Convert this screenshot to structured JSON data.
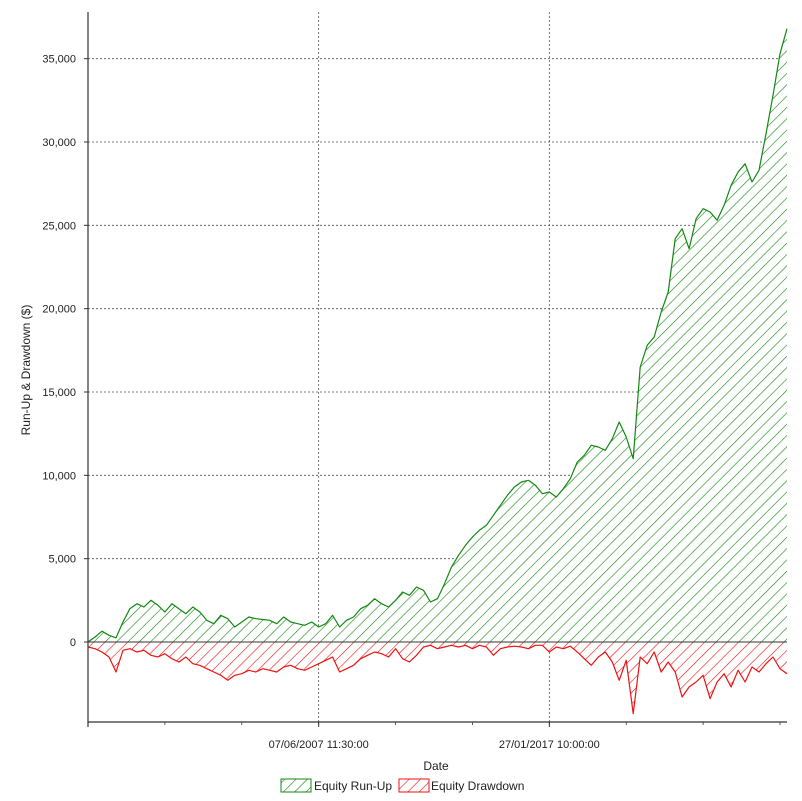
{
  "chart_data": {
    "type": "area",
    "xlabel": "Date",
    "ylabel": "Run-Up & Drawdown ($)",
    "ylim": [
      -4800,
      37800
    ],
    "y_ticks": [
      {
        "value": 0,
        "label": "0"
      },
      {
        "value": 5000,
        "label": "5,000"
      },
      {
        "value": 10000,
        "label": "10,000"
      },
      {
        "value": 15000,
        "label": "15,000"
      },
      {
        "value": 20000,
        "label": "20,000"
      },
      {
        "value": 25000,
        "label": "25,000"
      },
      {
        "value": 30000,
        "label": "30,000"
      },
      {
        "value": 35000,
        "label": "35,000"
      }
    ],
    "xlim": [
      0,
      100
    ],
    "x_ticks": [
      {
        "value": 0,
        "label": ""
      },
      {
        "value": 33,
        "label": "07/06/2007 11:30:00"
      },
      {
        "value": 66,
        "label": "27/01/2017 10:00:00"
      }
    ],
    "grid": true,
    "legend_position": "bottom",
    "series": [
      {
        "name": "Equity Run-Up",
        "color": "#118811",
        "x": [
          0,
          1,
          2,
          3,
          4,
          5,
          6,
          7,
          8,
          9,
          10,
          11,
          12,
          13,
          14,
          15,
          16,
          17,
          18,
          19,
          20,
          21,
          22,
          23,
          24,
          25,
          26,
          27,
          28,
          29,
          30,
          31,
          32,
          33,
          34,
          35,
          36,
          37,
          38,
          39,
          40,
          41,
          42,
          43,
          44,
          45,
          46,
          47,
          48,
          49,
          50,
          51,
          52,
          53,
          54,
          55,
          56,
          57,
          58,
          59,
          60,
          61,
          62,
          63,
          64,
          65,
          66,
          67,
          68,
          69,
          70,
          71,
          72,
          73,
          74,
          75,
          76,
          77,
          78,
          79,
          80,
          81,
          82,
          83,
          84,
          85,
          86,
          87,
          88,
          89,
          90,
          91,
          92,
          93,
          94,
          95,
          96,
          97,
          98,
          99,
          100
        ],
        "values": [
          0,
          300,
          650,
          400,
          250,
          1200,
          2000,
          2300,
          2100,
          2500,
          2200,
          1800,
          2300,
          2000,
          1700,
          2100,
          1800,
          1300,
          1100,
          1600,
          1400,
          900,
          1200,
          1500,
          1400,
          1350,
          1300,
          1100,
          1500,
          1200,
          1100,
          1000,
          1200,
          900,
          1100,
          1600,
          900,
          1300,
          1500,
          2000,
          2200,
          2600,
          2300,
          2100,
          2500,
          3000,
          2800,
          3300,
          3100,
          2400,
          2600,
          3500,
          4500,
          5200,
          5800,
          6300,
          6700,
          7000,
          7600,
          8200,
          8800,
          9300,
          9600,
          9700,
          9400,
          8900,
          9000,
          8700,
          9200,
          9800,
          10800,
          11200,
          11800,
          11700,
          11500,
          12200,
          13200,
          12300,
          11000,
          16500,
          17800,
          18300,
          19800,
          21000,
          24200,
          24800,
          23600,
          25400,
          26000,
          25800,
          25300,
          26200,
          27400,
          28200,
          28700,
          27600,
          28300,
          30500,
          32800,
          35300,
          36800
        ]
      },
      {
        "name": "Equity Drawdown",
        "color": "#ee1111",
        "x": [
          0,
          1,
          2,
          3,
          4,
          5,
          6,
          7,
          8,
          9,
          10,
          11,
          12,
          13,
          14,
          15,
          16,
          17,
          18,
          19,
          20,
          21,
          22,
          23,
          24,
          25,
          26,
          27,
          28,
          29,
          30,
          31,
          32,
          33,
          34,
          35,
          36,
          37,
          38,
          39,
          40,
          41,
          42,
          43,
          44,
          45,
          46,
          47,
          48,
          49,
          50,
          51,
          52,
          53,
          54,
          55,
          56,
          57,
          58,
          59,
          60,
          61,
          62,
          63,
          64,
          65,
          66,
          67,
          68,
          69,
          70,
          71,
          72,
          73,
          74,
          75,
          76,
          77,
          78,
          79,
          80,
          81,
          82,
          83,
          84,
          85,
          86,
          87,
          88,
          89,
          90,
          91,
          92,
          93,
          94,
          95,
          96,
          97,
          98,
          99,
          100
        ],
        "values": [
          -300,
          -400,
          -600,
          -900,
          -1800,
          -500,
          -400,
          -600,
          -500,
          -800,
          -900,
          -700,
          -1000,
          -1200,
          -900,
          -1300,
          -1400,
          -1600,
          -1800,
          -2000,
          -2300,
          -2000,
          -1900,
          -1700,
          -1800,
          -1600,
          -1700,
          -1800,
          -1500,
          -1400,
          -1600,
          -1700,
          -1500,
          -1300,
          -1100,
          -900,
          -1800,
          -1600,
          -1400,
          -1000,
          -800,
          -600,
          -700,
          -900,
          -400,
          -1000,
          -1200,
          -800,
          -300,
          -200,
          -400,
          -300,
          -200,
          -300,
          -200,
          -400,
          -200,
          -300,
          -800,
          -400,
          -300,
          -250,
          -300,
          -400,
          -200,
          -200,
          -600,
          -300,
          -400,
          -250,
          -600,
          -1000,
          -1400,
          -900,
          -600,
          -1200,
          -2300,
          -1100,
          -4300,
          -900,
          -1300,
          -600,
          -1800,
          -1200,
          -1800,
          -3300,
          -2700,
          -2400,
          -2000,
          -3400,
          -2400,
          -1900,
          -2700,
          -1700,
          -2400,
          -1500,
          -1800,
          -1300,
          -900,
          -1600,
          -1900
        ]
      }
    ]
  }
}
